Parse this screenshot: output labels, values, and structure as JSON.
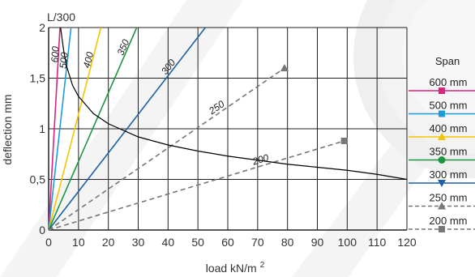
{
  "chart_data": {
    "type": "line",
    "title": "L/300",
    "xlabel": "load kN/m",
    "xlabel_sup": "2",
    "ylabel": "deflection mm",
    "xlim": [
      0,
      120
    ],
    "ylim": [
      0,
      2
    ],
    "x_ticks": [
      "0",
      "10",
      "20",
      "30",
      "40",
      "50",
      "60",
      "70",
      "80",
      "90",
      "100",
      "110",
      "120"
    ],
    "y_ticks": [
      "0",
      "0,5",
      "1",
      "1,5",
      "2"
    ],
    "grid": true,
    "legend_title": "Span",
    "legend_position": "right",
    "series": [
      {
        "name": "600 mm",
        "line_label": "600",
        "color": "#d6257e",
        "dash": false,
        "marker": "square",
        "points": [
          [
            0,
            0
          ],
          [
            3.8,
            2.0
          ]
        ]
      },
      {
        "name": "500 mm",
        "line_label": "500",
        "color": "#1e9bd7",
        "dash": false,
        "marker": "square",
        "points": [
          [
            0,
            0
          ],
          [
            7.5,
            2.0
          ]
        ]
      },
      {
        "name": "400 mm",
        "line_label": "400",
        "color": "#f5c400",
        "dash": false,
        "marker": "triangle-up",
        "points": [
          [
            0,
            0
          ],
          [
            17.5,
            2.0
          ]
        ]
      },
      {
        "name": "350 mm",
        "line_label": "350",
        "color": "#1e9640",
        "dash": false,
        "marker": "circle",
        "points": [
          [
            0,
            0
          ],
          [
            29.5,
            2.0
          ]
        ]
      },
      {
        "name": "300 mm",
        "line_label": "300",
        "color": "#1f5fa6",
        "dash": false,
        "marker": "triangle-down",
        "points": [
          [
            0,
            0
          ],
          [
            52.5,
            2.0
          ]
        ]
      },
      {
        "name": "250 mm",
        "line_label": "250",
        "color": "#777777",
        "dash": true,
        "marker": "triangle-up",
        "points": [
          [
            0,
            0
          ],
          [
            79,
            1.6
          ]
        ]
      },
      {
        "name": "200 mm",
        "line_label": "200",
        "color": "#777777",
        "dash": true,
        "marker": "square",
        "points": [
          [
            0,
            0
          ],
          [
            99,
            0.88
          ]
        ]
      }
    ],
    "limit_curve": {
      "label": "L/300",
      "color": "#000000",
      "points": [
        [
          4,
          2.0
        ],
        [
          5,
          1.78
        ],
        [
          6,
          1.62
        ],
        [
          8,
          1.43
        ],
        [
          10,
          1.32
        ],
        [
          15,
          1.15
        ],
        [
          20,
          1.05
        ],
        [
          30,
          0.92
        ],
        [
          40,
          0.84
        ],
        [
          50,
          0.78
        ],
        [
          60,
          0.73
        ],
        [
          70,
          0.69
        ],
        [
          80,
          0.65
        ],
        [
          90,
          0.62
        ],
        [
          100,
          0.59
        ],
        [
          110,
          0.55
        ],
        [
          120,
          0.5
        ]
      ]
    }
  }
}
